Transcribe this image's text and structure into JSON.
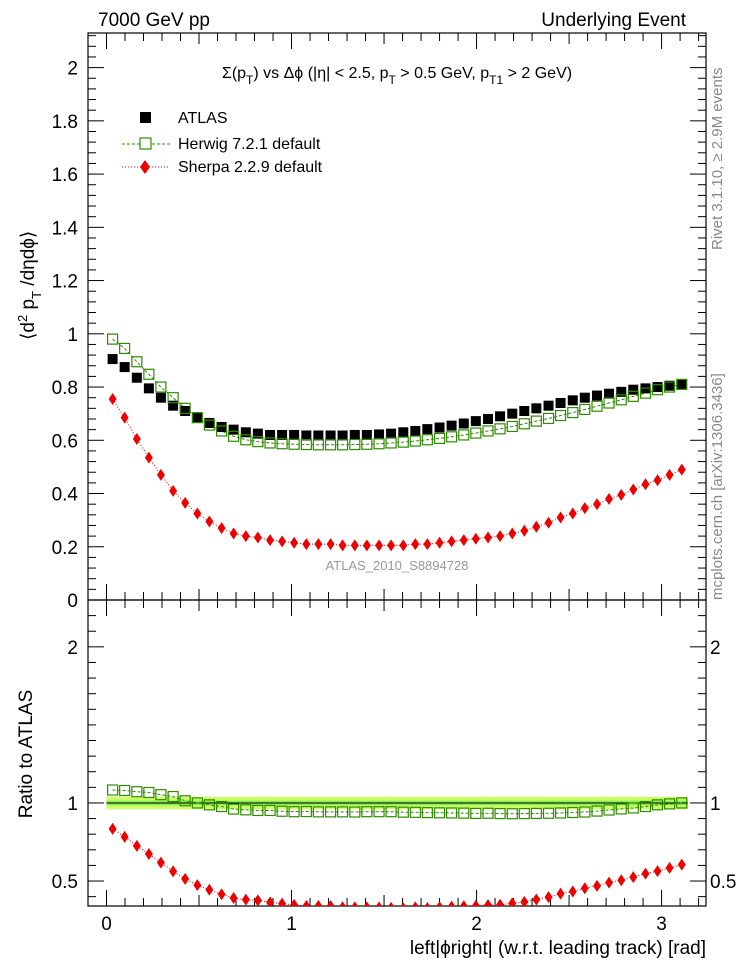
{
  "header": {
    "left": "7000 GeV pp",
    "right": "Underlying Event",
    "side_top": "Rivet 3.1.10, ≥ 2.9M events",
    "side_bottom": "mcplots.cern.ch [arXiv:1306.3436]"
  },
  "colors": {
    "atlas": "#000000",
    "herwig": "#2e8b00",
    "sherpa": "#ee0000",
    "band_outer": "#ccff66",
    "band_inner": "#88ee55"
  },
  "chart_data": [
    {
      "type": "scatter",
      "panel": "main",
      "title_parts": {
        "t1": "Σ(p",
        "s1": "T",
        "t2": ") vs Δϕ (|η| < 2.5, p",
        "s2": "T",
        "t3": " > 0.5 GeV, p",
        "s3": "T1",
        "t4": " > 2 GeV)"
      },
      "ylabel_parts": {
        "p1": "⟨d",
        "sup": "2",
        "p2": " p",
        "sub": "T",
        "p3": " /dηdϕ⟩"
      },
      "watermark": "ATLAS_2010_S8894728",
      "xlim": [
        -0.1,
        3.24
      ],
      "ylim": [
        0,
        2.13
      ],
      "yticks": [
        0,
        0.2,
        0.4,
        0.6,
        0.8,
        1,
        1.2,
        1.4,
        1.6,
        1.8,
        2
      ],
      "ytick_labels": [
        "0",
        "0.2",
        "0.4",
        "0.6",
        "0.8",
        "1",
        "1.2",
        "1.4",
        "1.6",
        "1.8",
        "2"
      ],
      "x": [
        0.033,
        0.098,
        0.164,
        0.229,
        0.294,
        0.36,
        0.425,
        0.491,
        0.556,
        0.622,
        0.687,
        0.753,
        0.818,
        0.884,
        0.949,
        1.014,
        1.08,
        1.145,
        1.211,
        1.276,
        1.342,
        1.407,
        1.473,
        1.538,
        1.604,
        1.669,
        1.734,
        1.8,
        1.865,
        1.931,
        1.996,
        2.062,
        2.127,
        2.193,
        2.258,
        2.323,
        2.389,
        2.454,
        2.52,
        2.585,
        2.651,
        2.716,
        2.782,
        2.847,
        2.913,
        2.978,
        3.043,
        3.109
      ],
      "series": [
        {
          "name": "ATLAS",
          "legend": "ATLAS",
          "values": [
            0.905,
            0.875,
            0.835,
            0.795,
            0.76,
            0.73,
            0.71,
            0.685,
            0.665,
            0.65,
            0.64,
            0.63,
            0.625,
            0.62,
            0.62,
            0.62,
            0.618,
            0.618,
            0.618,
            0.618,
            0.62,
            0.62,
            0.622,
            0.625,
            0.63,
            0.635,
            0.642,
            0.648,
            0.655,
            0.663,
            0.672,
            0.68,
            0.69,
            0.7,
            0.71,
            0.72,
            0.73,
            0.74,
            0.75,
            0.76,
            0.768,
            0.775,
            0.782,
            0.79,
            0.795,
            0.8,
            0.805,
            0.81
          ]
        },
        {
          "name": "Herwig",
          "legend": "Herwig 7.2.1 default",
          "values": [
            0.98,
            0.945,
            0.895,
            0.848,
            0.8,
            0.76,
            0.72,
            0.685,
            0.657,
            0.635,
            0.615,
            0.602,
            0.595,
            0.59,
            0.587,
            0.585,
            0.584,
            0.583,
            0.583,
            0.583,
            0.584,
            0.585,
            0.587,
            0.59,
            0.593,
            0.597,
            0.602,
            0.607,
            0.613,
            0.62,
            0.627,
            0.635,
            0.643,
            0.652,
            0.662,
            0.672,
            0.682,
            0.693,
            0.704,
            0.716,
            0.728,
            0.74,
            0.752,
            0.765,
            0.777,
            0.79,
            0.8,
            0.81
          ]
        },
        {
          "name": "Sherpa",
          "legend": "Sherpa 2.2.9 default",
          "values": [
            0.755,
            0.685,
            0.605,
            0.535,
            0.47,
            0.41,
            0.365,
            0.325,
            0.295,
            0.27,
            0.25,
            0.24,
            0.235,
            0.225,
            0.22,
            0.215,
            0.21,
            0.21,
            0.21,
            0.205,
            0.205,
            0.205,
            0.205,
            0.205,
            0.205,
            0.21,
            0.21,
            0.215,
            0.22,
            0.225,
            0.23,
            0.235,
            0.24,
            0.25,
            0.26,
            0.275,
            0.29,
            0.31,
            0.325,
            0.345,
            0.36,
            0.38,
            0.395,
            0.415,
            0.435,
            0.45,
            0.47,
            0.49
          ]
        }
      ]
    },
    {
      "type": "scatter",
      "panel": "ratio",
      "ylabel": "Ratio to ATLAS",
      "xlabel": "left|ϕright| (w.r.t. leading track) [rad]",
      "xlim": [
        -0.1,
        3.24
      ],
      "ylim": [
        0.34,
        2.3
      ],
      "xticks": [
        0,
        1,
        2,
        3
      ],
      "xtick_labels": [
        "0",
        "1",
        "2",
        "3"
      ],
      "yticks": [
        0.5,
        1,
        2
      ],
      "ytick_labels": [
        "0.5",
        "1",
        "2"
      ],
      "band_outer": [
        0.96,
        1.04
      ],
      "band_inner": [
        0.985,
        1.015
      ],
      "series": [
        {
          "name": "Herwig",
          "values": [
            1.083,
            1.08,
            1.072,
            1.067,
            1.053,
            1.041,
            1.014,
            1.0,
            0.988,
            0.977,
            0.961,
            0.956,
            0.952,
            0.952,
            0.947,
            0.944,
            0.945,
            0.943,
            0.943,
            0.943,
            0.942,
            0.944,
            0.944,
            0.944,
            0.941,
            0.94,
            0.938,
            0.937,
            0.936,
            0.935,
            0.933,
            0.934,
            0.932,
            0.931,
            0.932,
            0.933,
            0.934,
            0.936,
            0.939,
            0.942,
            0.948,
            0.955,
            0.962,
            0.968,
            0.977,
            0.988,
            0.994,
            1.0
          ]
        },
        {
          "name": "Sherpa",
          "values": [
            0.834,
            0.783,
            0.725,
            0.673,
            0.618,
            0.562,
            0.514,
            0.474,
            0.444,
            0.415,
            0.391,
            0.381,
            0.376,
            0.363,
            0.355,
            0.347,
            0.34,
            0.34,
            0.34,
            0.332,
            0.331,
            0.331,
            0.33,
            0.328,
            0.325,
            0.331,
            0.327,
            0.332,
            0.336,
            0.339,
            0.342,
            0.346,
            0.348,
            0.357,
            0.366,
            0.382,
            0.397,
            0.419,
            0.433,
            0.454,
            0.469,
            0.49,
            0.505,
            0.525,
            0.547,
            0.563,
            0.584,
            0.605
          ]
        }
      ]
    }
  ]
}
